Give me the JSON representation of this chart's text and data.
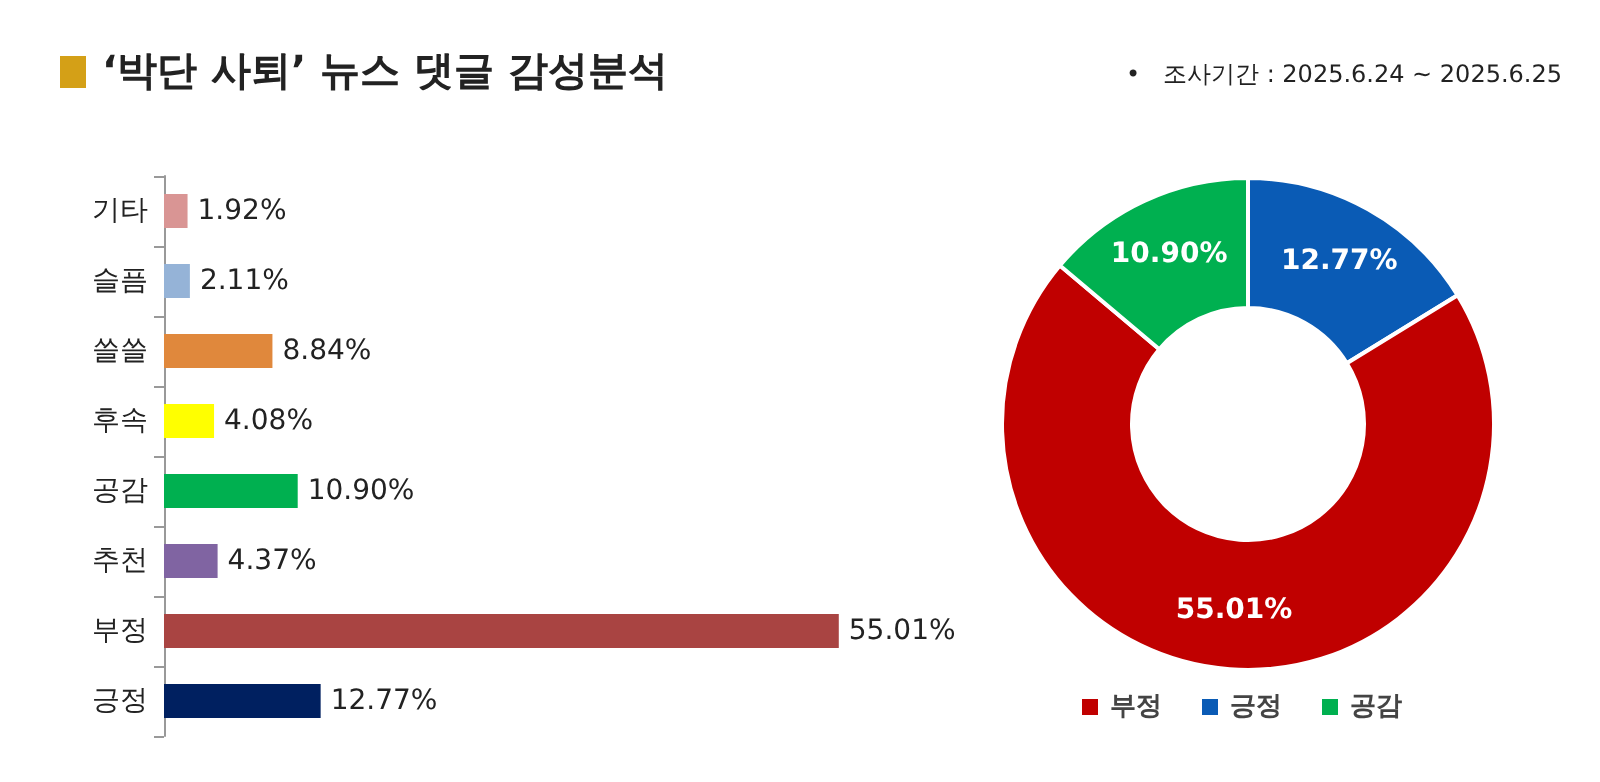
{
  "chart_data": [
    {
      "type": "bar",
      "orientation": "horizontal",
      "title": "‘박단 사퇴’ 뉴스 댓글 감성분석",
      "categories": [
        "기타",
        "슬픔",
        "쓸쓸",
        "후속",
        "공감",
        "추천",
        "부정",
        "긍정"
      ],
      "values": [
        1.92,
        2.11,
        8.84,
        4.08,
        10.9,
        4.37,
        55.01,
        12.77
      ],
      "value_labels": [
        "1.92%",
        "2.11%",
        "8.84%",
        "4.08%",
        "10.90%",
        "4.37%",
        "55.01%",
        "12.77%"
      ],
      "colors": [
        "#d99594",
        "#95b3d7",
        "#e0883c",
        "#ffff00",
        "#00b050",
        "#8064a2",
        "#a94442",
        "#002060"
      ],
      "grid": false,
      "legend": false
    },
    {
      "type": "donut",
      "subtitle": "•   조사기간 : 2025.6.24 ~ 2025.6.25",
      "categories": [
        "긍정",
        "부정",
        "공감"
      ],
      "values": [
        12.77,
        55.01,
        10.9
      ],
      "value_labels": [
        "12.77%",
        "55.01%",
        "10.90%"
      ],
      "colors": [
        "#0a5bb5",
        "#c00000",
        "#00b050"
      ],
      "legend": "bottom"
    }
  ]
}
